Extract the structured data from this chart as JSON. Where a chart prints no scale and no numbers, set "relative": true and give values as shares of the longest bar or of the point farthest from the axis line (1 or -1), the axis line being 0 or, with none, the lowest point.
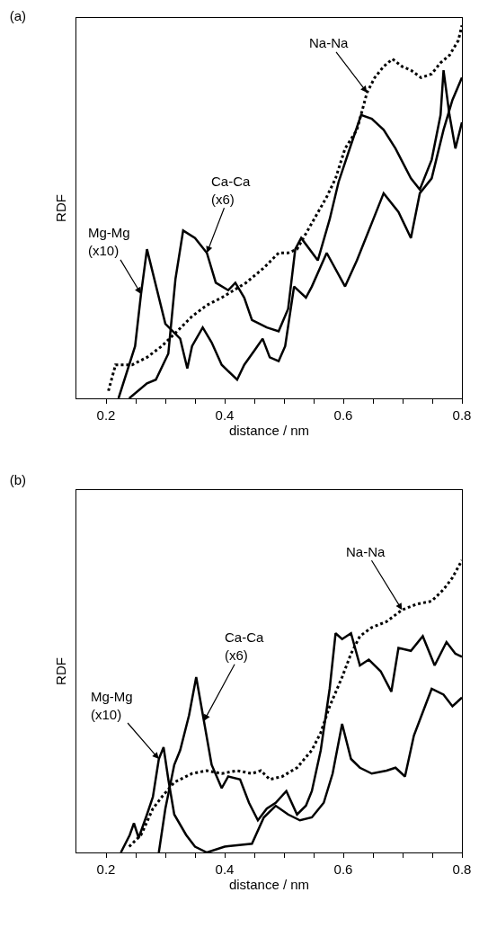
{
  "chart_data": [
    {
      "type": "line",
      "title": "(a)",
      "xlabel": "distance / nm",
      "ylabel": "RDF",
      "relative": true,
      "xlim": [
        0.15,
        0.8
      ],
      "xticks": [
        0.2,
        {
          "value": 0.25,
          "label": null
        },
        {
          "value": 0.3,
          "label": null
        },
        {
          "value": 0.35,
          "label": null
        },
        0.4,
        {
          "value": 0.45,
          "label": null
        },
        {
          "value": 0.5,
          "label": null
        },
        {
          "value": 0.55,
          "label": null
        },
        0.6,
        {
          "value": 0.65,
          "label": null
        },
        {
          "value": 0.7,
          "label": null
        },
        {
          "value": 0.75,
          "label": null
        },
        0.8
      ],
      "tick_labels": "x",
      "grid": false,
      "marker": "none",
      "series": [
        {
          "color": "#000000",
          "line_style": "solid",
          "x": [
            0.221,
            0.249,
            0.259,
            0.269,
            0.3,
            0.325,
            0.337,
            0.345,
            0.363,
            0.378,
            0.395,
            0.421,
            0.433,
            0.451,
            0.464,
            0.476,
            0.491,
            0.502,
            0.517,
            0.537,
            0.547,
            0.572,
            0.603,
            0.623,
            0.648,
            0.668,
            0.693,
            0.714,
            0.729,
            0.749,
            0.769,
            0.784,
            0.8
          ],
          "values": [
            0,
            0.14,
            0.28,
            0.4,
            0.2,
            0.16,
            0.08,
            0.14,
            0.19,
            0.15,
            0.09,
            0.05,
            0.09,
            0.13,
            0.16,
            0.11,
            0.1,
            0.14,
            0.3,
            0.27,
            0.3,
            0.39,
            0.3,
            0.37,
            0.47,
            0.55,
            0.5,
            0.43,
            0.55,
            0.59,
            0.72,
            0.8,
            0.86
          ]
        },
        {
          "color": "#000000",
          "line_style": "solid",
          "x": [
            0.239,
            0.269,
            0.284,
            0.305,
            0.317,
            0.33,
            0.35,
            0.37,
            0.385,
            0.406,
            0.418,
            0.433,
            0.446,
            0.471,
            0.491,
            0.507,
            0.519,
            0.529,
            0.557,
            0.577,
            0.592,
            0.613,
            0.63,
            0.648,
            0.668,
            0.688,
            0.714,
            0.729,
            0.749,
            0.764,
            0.769,
            0.779,
            0.789,
            0.8
          ],
          "values": [
            0,
            0.04,
            0.05,
            0.12,
            0.32,
            0.45,
            0.43,
            0.39,
            0.31,
            0.29,
            0.31,
            0.27,
            0.21,
            0.19,
            0.18,
            0.24,
            0.4,
            0.43,
            0.37,
            0.48,
            0.58,
            0.68,
            0.76,
            0.75,
            0.72,
            0.67,
            0.59,
            0.56,
            0.64,
            0.76,
            0.88,
            0.76,
            0.67,
            0.74
          ]
        },
        {
          "color": "#000000",
          "line_style": "dotted",
          "x": [
            0.204,
            0.216,
            0.244,
            0.269,
            0.294,
            0.32,
            0.345,
            0.37,
            0.395,
            0.436,
            0.466,
            0.491,
            0.507,
            0.522,
            0.547,
            0.572,
            0.587,
            0.603,
            0.623,
            0.64,
            0.653,
            0.668,
            0.683,
            0.699,
            0.714,
            0.731,
            0.749,
            0.764,
            0.779,
            0.794,
            0.8
          ],
          "values": [
            0.02,
            0.09,
            0.09,
            0.11,
            0.14,
            0.18,
            0.22,
            0.25,
            0.27,
            0.31,
            0.35,
            0.39,
            0.39,
            0.4,
            0.47,
            0.54,
            0.59,
            0.67,
            0.72,
            0.82,
            0.86,
            0.89,
            0.91,
            0.89,
            0.88,
            0.86,
            0.87,
            0.9,
            0.92,
            0.96,
            1.0
          ]
        }
      ],
      "annotations": [
        {
          "text": "Mg-Mg\n(x10)",
          "x": 0.259,
          "y": 0.28
        },
        {
          "text": "Ca-Ca\n(x6)",
          "x": 0.37,
          "y": 0.39
        },
        {
          "text": "Na-Na",
          "x": 0.64,
          "y": 0.82
        }
      ]
    },
    {
      "type": "line",
      "title": "(b)",
      "xlabel": "distance / nm",
      "ylabel": "RDF",
      "relative": true,
      "xlim": [
        0.15,
        0.8
      ],
      "xticks": [
        0.2,
        {
          "value": 0.25,
          "label": null
        },
        {
          "value": 0.3,
          "label": null
        },
        {
          "value": 0.35,
          "label": null
        },
        0.4,
        {
          "value": 0.45,
          "label": null
        },
        {
          "value": 0.5,
          "label": null
        },
        {
          "value": 0.55,
          "label": null
        },
        0.6,
        {
          "value": 0.65,
          "label": null
        },
        {
          "value": 0.7,
          "label": null
        },
        {
          "value": 0.75,
          "label": null
        },
        0.8
      ],
      "tick_labels": "x",
      "grid": false,
      "marker": "none",
      "series": [
        {
          "color": "#000000",
          "line_style": "solid",
          "x": [
            0.225,
            0.24,
            0.247,
            0.255,
            0.269,
            0.279,
            0.289,
            0.297,
            0.305,
            0.315,
            0.335,
            0.35,
            0.37,
            0.4,
            0.446,
            0.466,
            0.486,
            0.507,
            0.527,
            0.547,
            0.567,
            0.582,
            0.598,
            0.613,
            0.628,
            0.648,
            0.673,
            0.688,
            0.704,
            0.719,
            0.734,
            0.749,
            0.769,
            0.784,
            0.8
          ],
          "values": [
            0,
            0.06,
            0.1,
            0.05,
            0.13,
            0.19,
            0.32,
            0.36,
            0.25,
            0.13,
            0.06,
            0.02,
            0,
            0.02,
            0.03,
            0.12,
            0.16,
            0.13,
            0.11,
            0.12,
            0.17,
            0.27,
            0.44,
            0.32,
            0.29,
            0.27,
            0.28,
            0.29,
            0.26,
            0.4,
            0.48,
            0.56,
            0.54,
            0.5,
            0.53
          ]
        },
        {
          "color": "#000000",
          "line_style": "solid",
          "x": [
            0.289,
            0.3,
            0.315,
            0.325,
            0.34,
            0.352,
            0.365,
            0.378,
            0.395,
            0.406,
            0.426,
            0.441,
            0.456,
            0.471,
            0.486,
            0.504,
            0.522,
            0.537,
            0.547,
            0.562,
            0.577,
            0.587,
            0.598,
            0.613,
            0.628,
            0.643,
            0.663,
            0.681,
            0.693,
            0.714,
            0.734,
            0.754,
            0.774,
            0.789,
            0.8
          ],
          "values": [
            0,
            0.15,
            0.3,
            0.35,
            0.47,
            0.6,
            0.45,
            0.3,
            0.22,
            0.26,
            0.25,
            0.17,
            0.11,
            0.15,
            0.17,
            0.21,
            0.13,
            0.16,
            0.21,
            0.35,
            0.56,
            0.75,
            0.73,
            0.75,
            0.64,
            0.66,
            0.62,
            0.55,
            0.7,
            0.69,
            0.74,
            0.64,
            0.72,
            0.68,
            0.67
          ]
        },
        {
          "color": "#000000",
          "line_style": "dotted",
          "x": [
            0.239,
            0.259,
            0.279,
            0.294,
            0.315,
            0.345,
            0.37,
            0.395,
            0.421,
            0.446,
            0.461,
            0.476,
            0.497,
            0.522,
            0.547,
            0.562,
            0.577,
            0.598,
            0.613,
            0.628,
            0.648,
            0.673,
            0.699,
            0.724,
            0.749,
            0.769,
            0.784,
            0.8
          ],
          "values": [
            0.02,
            0.06,
            0.15,
            0.19,
            0.24,
            0.27,
            0.28,
            0.27,
            0.28,
            0.27,
            0.28,
            0.25,
            0.26,
            0.29,
            0.35,
            0.41,
            0.5,
            0.6,
            0.68,
            0.74,
            0.77,
            0.79,
            0.83,
            0.85,
            0.86,
            0.9,
            0.94,
            1.0
          ]
        }
      ],
      "annotations": [
        {
          "text": "Mg-Mg\n(x10)",
          "x": 0.289,
          "y": 0.32
        },
        {
          "text": "Ca-Ca\n(x6)",
          "x": 0.365,
          "y": 0.45
        },
        {
          "text": "Na-Na",
          "x": 0.699,
          "y": 0.83
        }
      ]
    }
  ]
}
